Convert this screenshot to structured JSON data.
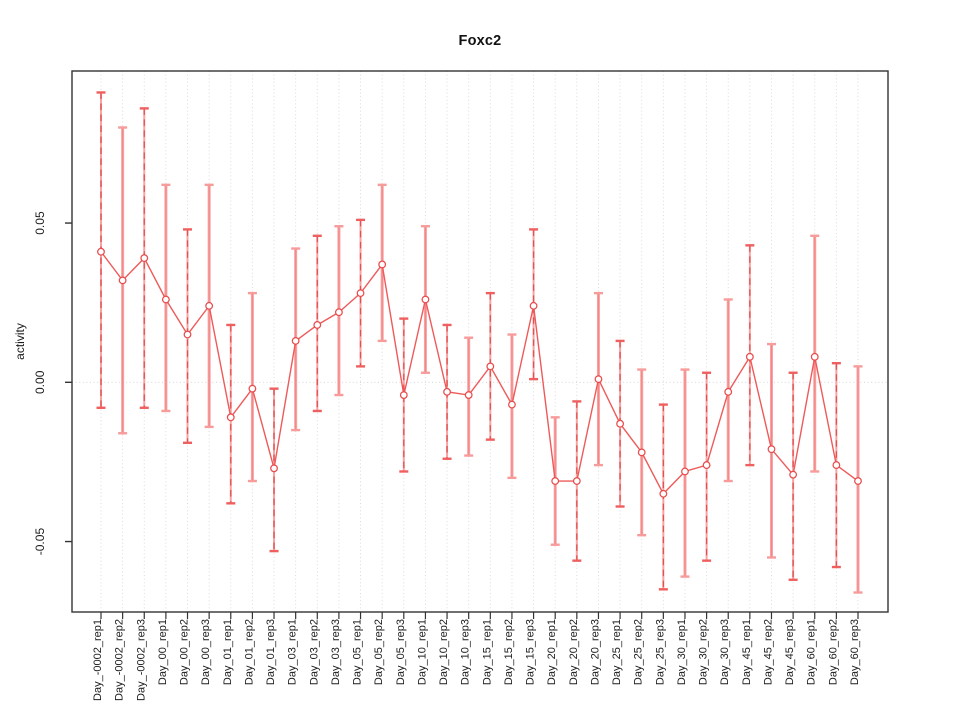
{
  "title": "Foxc2",
  "y_axis": {
    "label": "activity",
    "tick_labels": [
      "0.05",
      "0.00",
      "-0.05"
    ],
    "tick_values": [
      0.05,
      0.0,
      -0.05
    ]
  },
  "colors": {
    "series_red": "#e84c4c",
    "line_red": "#ee5a5a",
    "bar_pink": "#f8a2a2",
    "bar_dash_red": "#e25151",
    "cap_red": "#ef5f5f",
    "cap_pink": "#f79b9b",
    "grid_gray": "#d7d7d7",
    "axis_black": "#333333"
  },
  "chart_data": {
    "type": "line",
    "subtype": "points-with-error-bars",
    "title": "Foxc2",
    "xlabel": "",
    "ylabel": "activity",
    "ylim": [
      -0.072,
      0.098
    ],
    "yticks": [
      -0.05,
      0.0,
      0.05
    ],
    "grid": "vertical-dotted-per-category",
    "zero_reference_line": "dotted",
    "legend_position": "none",
    "point_style": "open-circle",
    "x_tick_label_rotation": 90,
    "categories": [
      "Day_-0002_rep1",
      "Day_-0002_rep2",
      "Day_-0002_rep3",
      "Day_00_rep1",
      "Day_00_rep2",
      "Day_00_rep3",
      "Day_01_rep1",
      "Day_01_rep2",
      "Day_01_rep3",
      "Day_03_rep1",
      "Day_03_rep2",
      "Day_03_rep3",
      "Day_05_rep1",
      "Day_05_rep2",
      "Day_05_rep3",
      "Day_10_rep1",
      "Day_10_rep2",
      "Day_10_rep3",
      "Day_15_rep1",
      "Day_15_rep2",
      "Day_15_rep3",
      "Day_20_rep1",
      "Day_20_rep2",
      "Day_20_rep3",
      "Day_25_rep1",
      "Day_25_rep2",
      "Day_25_rep3",
      "Day_30_rep1",
      "Day_30_rep2",
      "Day_30_rep3",
      "Day_45_rep1",
      "Day_45_rep2",
      "Day_45_rep3",
      "Day_60_rep1",
      "Day_60_rep2",
      "Day_60_rep3"
    ],
    "series": [
      {
        "name": "activity",
        "values": [
          0.041,
          0.032,
          0.039,
          0.026,
          0.015,
          0.024,
          -0.011,
          -0.002,
          -0.027,
          0.013,
          0.018,
          0.022,
          0.028,
          0.037,
          -0.004,
          0.026,
          -0.003,
          -0.004,
          0.005,
          -0.007,
          0.024,
          -0.031,
          -0.031,
          0.001,
          -0.013,
          -0.022,
          -0.035,
          -0.028,
          -0.026,
          -0.003,
          0.008,
          -0.021,
          -0.029,
          0.008,
          -0.026,
          -0.031
        ],
        "error_low": [
          -0.008,
          -0.016,
          -0.008,
          -0.009,
          -0.019,
          -0.014,
          -0.038,
          -0.031,
          -0.053,
          -0.015,
          -0.009,
          -0.004,
          0.005,
          0.013,
          -0.028,
          0.003,
          -0.024,
          -0.023,
          -0.018,
          -0.03,
          0.001,
          -0.051,
          -0.056,
          -0.026,
          -0.039,
          -0.048,
          -0.065,
          -0.061,
          -0.056,
          -0.031,
          -0.026,
          -0.055,
          -0.062,
          -0.028,
          -0.058,
          -0.066
        ],
        "error_high": [
          0.091,
          0.08,
          0.086,
          0.062,
          0.048,
          0.062,
          0.018,
          0.028,
          -0.002,
          0.042,
          0.046,
          0.049,
          0.051,
          0.062,
          0.02,
          0.049,
          0.018,
          0.014,
          0.028,
          0.015,
          0.048,
          -0.011,
          -0.006,
          0.028,
          0.013,
          0.004,
          -0.007,
          0.004,
          0.003,
          0.026,
          0.043,
          0.012,
          0.003,
          0.046,
          0.006,
          0.005
        ]
      }
    ]
  }
}
